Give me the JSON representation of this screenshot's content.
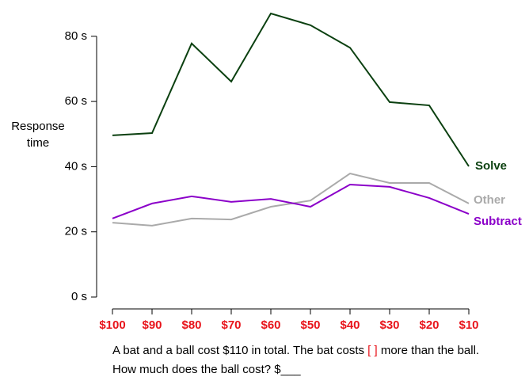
{
  "chart_data": {
    "type": "line",
    "y_label": [
      "Response",
      "time"
    ],
    "categories": [
      "$100",
      "$90",
      "$80",
      "$70",
      "$60",
      "$50",
      "$40",
      "$30",
      "$20",
      "$10"
    ],
    "series": [
      {
        "name": "Solve",
        "color": "#0b4010",
        "values": [
          49.6,
          50.3,
          77.8,
          66.1,
          87.0,
          83.4,
          76.5,
          59.8,
          58.8,
          40.1
        ]
      },
      {
        "name": "Other",
        "color": "#aaaaaa",
        "values": [
          22.8,
          21.9,
          24.1,
          23.8,
          27.7,
          29.6,
          37.9,
          35.0,
          35.0,
          28.7
        ]
      },
      {
        "name": "Subtract",
        "color": "#8b00c9",
        "values": [
          24.1,
          28.7,
          30.9,
          29.2,
          30.1,
          27.7,
          34.5,
          33.8,
          30.4,
          25.5
        ]
      }
    ],
    "ylim": [
      0,
      90
    ],
    "yticks": [
      {
        "value": 0,
        "label": "0 s"
      },
      {
        "value": 20,
        "label": "20 s"
      },
      {
        "value": 40,
        "label": "40 s"
      },
      {
        "value": 60,
        "label": "60 s"
      },
      {
        "value": 80,
        "label": "80 s"
      }
    ],
    "annotations": {
      "line1": [
        "A bat and a ball cost $110 in total. The bat costs ",
        "[ ]",
        " more than the ball."
      ],
      "line2": "How much does the ball cost? $___"
    }
  }
}
